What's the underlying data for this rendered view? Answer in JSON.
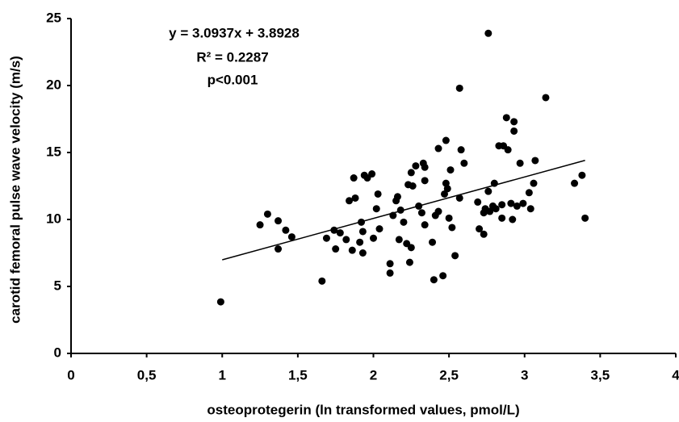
{
  "chart_data": {
    "type": "scatter",
    "x_label": "osteoprotegerin (ln transformed values, pmol/L)",
    "y_label": "carotid femoral pulse wave velocity (m/s)",
    "annotations": [
      "y = 3.0937x + 3.8928",
      "R² = 0.2287",
      "p<0.001"
    ],
    "color": "#000000",
    "xlim": [
      0,
      4
    ],
    "ylim": [
      0,
      25
    ],
    "xticks": [
      0,
      {
        "value": 0.5,
        "label": "0,5"
      },
      1,
      {
        "value": 1.5,
        "label": "1,5"
      },
      2,
      {
        "value": 2.5,
        "label": "2,5"
      },
      3,
      {
        "value": 3.5,
        "label": "3,5"
      },
      4
    ],
    "yticks": [
      0,
      5,
      10,
      15,
      20,
      25
    ],
    "x": [
      0.99,
      1.25,
      1.3,
      1.37,
      1.37,
      1.42,
      1.46,
      1.66,
      1.69,
      1.74,
      1.75,
      1.78,
      1.82,
      1.84,
      1.86,
      1.87,
      1.88,
      1.91,
      1.92,
      1.93,
      1.94,
      1.93,
      1.96,
      1.99,
      2.0,
      2.02,
      2.03,
      2.04,
      2.11,
      2.11,
      2.13,
      2.15,
      2.16,
      2.17,
      2.18,
      2.2,
      2.22,
      2.23,
      2.24,
      2.25,
      2.25,
      2.26,
      2.28,
      2.3,
      2.32,
      2.33,
      2.34,
      2.34,
      2.34,
      2.39,
      2.4,
      2.41,
      2.43,
      2.43,
      2.46,
      2.47,
      2.48,
      2.48,
      2.49,
      2.5,
      2.51,
      2.52,
      2.54,
      2.57,
      2.57,
      2.58,
      2.6,
      2.69,
      2.7,
      2.73,
      2.73,
      2.74,
      2.76,
      2.77,
      2.79,
      2.8,
      2.81,
      2.83,
      2.85,
      2.86,
      2.85,
      2.88,
      2.89,
      2.91,
      2.92,
      2.93,
      2.93,
      2.95,
      2.97,
      2.99,
      3.03,
      3.04,
      3.06,
      3.07,
      3.14,
      2.76,
      3.33,
      3.38,
      3.4
    ],
    "values": [
      3.85,
      9.6,
      10.4,
      9.9,
      7.8,
      9.2,
      8.7,
      5.4,
      8.6,
      9.2,
      7.8,
      9.0,
      8.5,
      11.4,
      7.7,
      13.1,
      11.6,
      8.3,
      9.8,
      9.1,
      13.3,
      7.5,
      13.1,
      13.4,
      8.6,
      10.8,
      11.9,
      9.3,
      6.7,
      6.0,
      10.3,
      11.4,
      11.7,
      8.5,
      10.7,
      9.8,
      8.2,
      12.6,
      6.8,
      13.5,
      7.9,
      12.5,
      14.0,
      11.0,
      10.5,
      14.2,
      12.9,
      13.9,
      9.6,
      8.3,
      5.5,
      10.3,
      10.6,
      15.3,
      5.8,
      11.9,
      15.9,
      12.7,
      12.3,
      10.1,
      13.7,
      9.4,
      7.3,
      11.6,
      19.8,
      15.2,
      14.2,
      11.3,
      9.3,
      8.9,
      10.5,
      10.8,
      12.1,
      10.6,
      11.0,
      12.7,
      10.8,
      15.5,
      11.1,
      15.5,
      10.1,
      17.6,
      15.2,
      11.2,
      10.0,
      17.3,
      16.6,
      11.0,
      14.2,
      11.2,
      12.0,
      10.8,
      12.7,
      14.4,
      19.1,
      23.9,
      12.7,
      13.3,
      10.1
    ],
    "trendline": {
      "x": [
        1,
        3.4
      ],
      "y": [
        6.9865,
        14.4114
      ]
    }
  }
}
